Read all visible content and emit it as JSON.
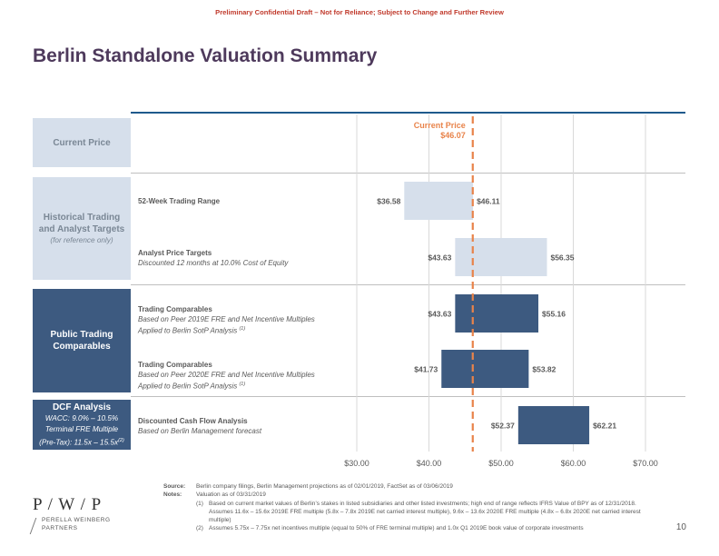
{
  "header": {
    "draft_notice": "Preliminary Confidential Draft – Not for Reliance; Subject to Change and Further Review",
    "title": "Berlin Standalone Valuation Summary"
  },
  "categories": {
    "current_price": {
      "title": "Current Price"
    },
    "historical": {
      "title": "Historical Trading and Analyst Targets",
      "subtitle": "(for reference only)"
    },
    "public": {
      "title": "Public Trading Comparables"
    },
    "dcf": {
      "title": "DCF Analysis",
      "line1": "WACC: 9.0% – 10.5%",
      "line2": "Terminal FRE Multiple",
      "line3": "(Pre-Tax): 11.5x – 15.5x",
      "line3_sup": "(2)"
    }
  },
  "rows": [
    {
      "title": "52-Week Trading Range",
      "sub1": "",
      "sub2": "",
      "sup": ""
    },
    {
      "title": "Analyst Price Targets",
      "sub1": "Discounted 12 months at 10.0% Cost of Equity",
      "sub2": "",
      "sup": ""
    },
    {
      "title": "Trading Comparables",
      "sub1": "Based on Peer 2019E FRE and Net Incentive Multiples",
      "sub2": "Applied to Berlin SotP Analysis ",
      "sup": "(1)"
    },
    {
      "title": "Trading Comparables",
      "sub1": "Based on Peer 2020E FRE and Net Incentive Multiples",
      "sub2": "Applied to Berlin SotP Analysis ",
      "sup": "(1)"
    },
    {
      "title": "Discounted Cash Flow Analysis",
      "sub1": "Based on Berlin Management forecast",
      "sub2": "",
      "sup": ""
    }
  ],
  "chart_data": {
    "type": "bar",
    "orientation": "horizontal-range",
    "xlim": [
      30,
      75
    ],
    "xticks": [
      30,
      40,
      50,
      60,
      70
    ],
    "xtick_labels": [
      "$30.00",
      "$40.00",
      "$50.00",
      "$60.00",
      "$70.00"
    ],
    "current_price": {
      "value": 46.07,
      "label": "Current Price",
      "value_label": "$46.07",
      "color": "#e8834a"
    },
    "series": [
      {
        "name": "52-Week Trading Range",
        "low": 36.58,
        "high": 46.11,
        "low_label": "$36.58",
        "high_label": "$46.11",
        "color": "#d6dfeb"
      },
      {
        "name": "Analyst Price Targets",
        "low": 43.63,
        "high": 56.35,
        "low_label": "$43.63",
        "high_label": "$56.35",
        "color": "#d6dfeb"
      },
      {
        "name": "Trading Comparables 2019E",
        "low": 43.63,
        "high": 55.16,
        "low_label": "$43.63",
        "high_label": "$55.16",
        "color": "#3d5a80"
      },
      {
        "name": "Trading Comparables 2020E",
        "low": 41.73,
        "high": 53.82,
        "low_label": "$41.73",
        "high_label": "$53.82",
        "color": "#3d5a80"
      },
      {
        "name": "Discounted Cash Flow Analysis",
        "low": 52.37,
        "high": 62.21,
        "low_label": "$52.37",
        "high_label": "$62.21",
        "color": "#3d5a80"
      }
    ]
  },
  "footer": {
    "source_label": "Source:",
    "source_text": "Berlin company filings, Berlin Management projections as of 02/01/2019, FactSet as of 03/06/2019",
    "notes_label": "Notes:",
    "notes_text": "Valuation as of 03/31/2019",
    "note1_num": "(1)",
    "note1_text": "Based on current market values of Berlin’s stakes in listed subsidiaries and other listed investments; high end of range reflects IFRS Value of BPY as of 12/31/2018. Assumes 11.6x – 15.6x 2019E FRE multiple (5.8x – 7.8x 2019E net carried interest multiple), 9.6x – 13.6x 2020E FRE multiple (4.8x – 6.8x 2020E net carried interest multiple)",
    "note2_num": "(2)",
    "note2_text": "Assumes 5.75x – 7.75x net incentives multiple (equal to 50% of FRE terminal multiple) and 1.0x Q1 2019E book value of corporate investments",
    "page_number": "10"
  },
  "logo": {
    "mark": "P / W / P",
    "line1": "PERELLA WEINBERG",
    "line2": "PARTNERS"
  }
}
